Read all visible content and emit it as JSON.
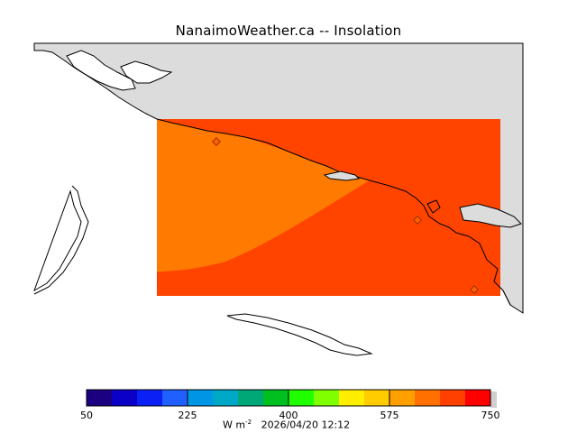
{
  "title": "NanaimoWeather.ca  --  Insolation",
  "legend": {
    "colors": [
      "#1b007f",
      "#0b00c8",
      "#0a20f4",
      "#2060ff",
      "#0096e6",
      "#00a8c8",
      "#00a878",
      "#00c020",
      "#20ff00",
      "#80ff00",
      "#ffee00",
      "#ffcc00",
      "#ffa000",
      "#ff7000",
      "#ff4000",
      "#ff0000"
    ],
    "tick_labels": [
      "50",
      "225",
      "400",
      "575",
      "750"
    ],
    "units_prefix": "W m",
    "units_exponent": "-2",
    "timestamp": "2026/04/20 12:12"
  },
  "map": {
    "land_color": "#dcdcdc",
    "water_color": "#ffffff",
    "field_colors": {
      "inner": "#ff7a00",
      "outer": "#ff4400"
    },
    "station_marker_color": "#d04000"
  }
}
